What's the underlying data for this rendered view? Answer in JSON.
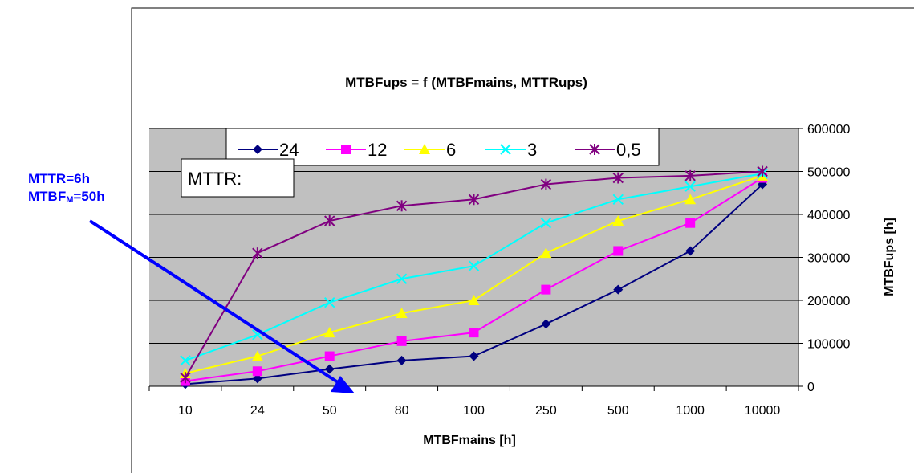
{
  "chart_data": {
    "type": "line",
    "title": "MTBFups = f (MTBFmains, MTTRups)",
    "xlabel": "MTBFmains [h]",
    "ylabel": "MTBFups [h]",
    "categories": [
      "10",
      "24",
      "50",
      "80",
      "100",
      "250",
      "500",
      "1000",
      "10000"
    ],
    "ylim": [
      0,
      600000
    ],
    "yticks": [
      "0",
      "100000",
      "200000",
      "300000",
      "400000",
      "500000",
      "600000"
    ],
    "ytick_values": [
      0,
      100000,
      200000,
      300000,
      400000,
      500000,
      600000
    ],
    "y_axis_position": "right",
    "grid": true,
    "legend_position": "top",
    "legend_title": "MTTR:",
    "series": [
      {
        "name": "24",
        "color": "#000080",
        "marker": "diamond",
        "values": [
          5000,
          18000,
          40000,
          60000,
          70000,
          145000,
          225000,
          315000,
          470000
        ]
      },
      {
        "name": "12",
        "color": "#ff00ff",
        "marker": "square",
        "values": [
          12000,
          35000,
          70000,
          105000,
          125000,
          225000,
          315000,
          380000,
          485000
        ]
      },
      {
        "name": "6",
        "color": "#ffff00",
        "marker": "triangle",
        "values": [
          30000,
          70000,
          125000,
          170000,
          200000,
          310000,
          385000,
          435000,
          490000
        ]
      },
      {
        "name": "3",
        "color": "#00ffff",
        "marker": "x",
        "values": [
          60000,
          120000,
          195000,
          250000,
          280000,
          380000,
          435000,
          465000,
          495000
        ]
      },
      {
        "name": "0,5",
        "color": "#800080",
        "marker": "star",
        "values": [
          20000,
          310000,
          385000,
          420000,
          435000,
          470000,
          485000,
          490000,
          500000
        ]
      }
    ],
    "annotation": {
      "line1": "MTTR=6h",
      "line2_prefix": "MTBF",
      "line2_sub": "M",
      "line2_suffix": "=50h",
      "arrow_color": "#0000ff"
    }
  }
}
